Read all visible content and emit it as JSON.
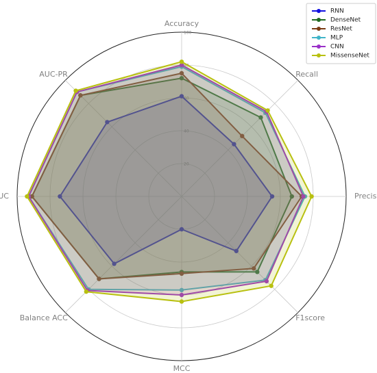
{
  "chart_data": {
    "type": "radar",
    "categories": [
      "Accuracy",
      "Recall",
      "Precision",
      "F1score",
      "MCC",
      "Balance ACC",
      "AUC",
      "AUC-PR"
    ],
    "rlim": [
      0,
      100
    ],
    "rticks": [
      20,
      40,
      60,
      80,
      100
    ],
    "grid": true,
    "legend": "upper right",
    "series": [
      {
        "name": "RNN",
        "color": "#1010e0",
        "values": [
          61,
          45,
          55,
          47,
          20,
          58,
          74,
          64
        ]
      },
      {
        "name": "DenseNet",
        "color": "#1e6a1e",
        "values": [
          72,
          68,
          67,
          65,
          46,
          71,
          91,
          87
        ]
      },
      {
        "name": "ResNet",
        "color": "#7a3a12",
        "values": [
          75,
          52,
          73,
          62,
          47,
          71,
          91,
          87
        ]
      },
      {
        "name": "MLP",
        "color": "#40b4c8",
        "values": [
          79,
          72,
          75,
          72,
          57,
          80,
          93,
          90
        ]
      },
      {
        "name": "CNN",
        "color": "#9a30c8",
        "values": [
          80,
          73,
          74,
          73,
          60,
          81,
          93,
          90
        ]
      },
      {
        "name": "MissenseNet",
        "color": "#b8c010",
        "values": [
          82,
          74,
          79,
          77,
          64,
          82,
          94,
          91
        ]
      }
    ]
  }
}
